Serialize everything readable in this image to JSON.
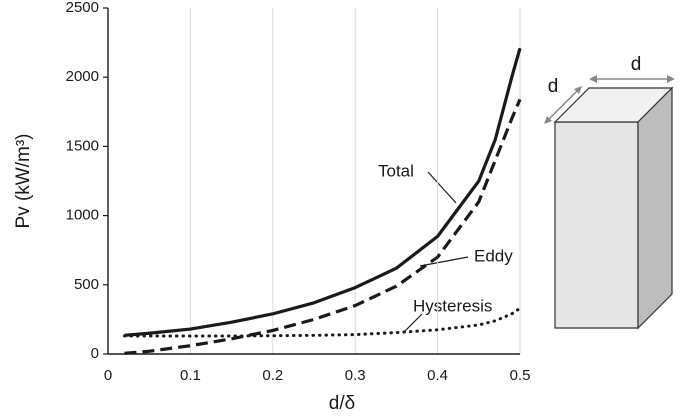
{
  "chart_data": {
    "type": "line",
    "xlabel": "d/δ",
    "ylabel": "Pv (kW/m³)",
    "xlim": [
      0,
      0.5
    ],
    "xticks": [
      0,
      0.1,
      0.2,
      0.3,
      0.4,
      0.5
    ],
    "ylim": [
      0,
      2500
    ],
    "yticks": [
      0,
      500,
      1000,
      1500,
      2000,
      2500
    ],
    "grid": "x",
    "x": [
      0.02,
      0.05,
      0.1,
      0.15,
      0.2,
      0.25,
      0.3,
      0.35,
      0.4,
      0.45,
      0.47,
      0.49,
      0.5
    ],
    "series": [
      {
        "name": "Total",
        "color": "#1a1a1a",
        "style": "solid",
        "values": [
          135,
          150,
          180,
          230,
          290,
          370,
          480,
          620,
          850,
          1250,
          1550,
          2000,
          2210
        ]
      },
      {
        "name": "Eddy",
        "color": "#1a1a1a",
        "style": "dashed",
        "values": [
          5,
          20,
          60,
          110,
          170,
          250,
          350,
          490,
          700,
          1100,
          1400,
          1700,
          1840
        ]
      },
      {
        "name": "Hysteresis",
        "color": "#1a1a1a",
        "style": "dotted",
        "values": [
          130,
          130,
          130,
          130,
          132,
          135,
          140,
          155,
          175,
          210,
          240,
          290,
          330
        ]
      }
    ]
  },
  "diagram": {
    "depth_label": "d",
    "width_label": "d"
  }
}
